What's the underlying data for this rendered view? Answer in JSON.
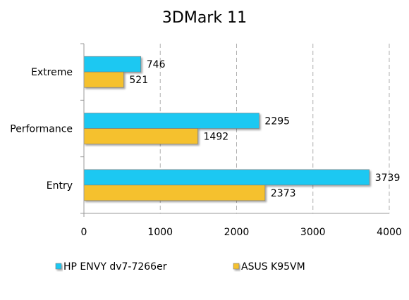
{
  "chart_data": {
    "type": "bar",
    "orientation": "horizontal",
    "title": "3DMark 11",
    "categories": [
      "Extreme",
      "Performance",
      "Entry"
    ],
    "series": [
      {
        "name": "HP ENVY dv7-7266er",
        "color": "#1ec8f2",
        "values": [
          746,
          2295,
          3739
        ]
      },
      {
        "name": "ASUS K95VM",
        "color": "#f5c12e",
        "values": [
          521,
          1492,
          2373
        ]
      }
    ],
    "xlim": [
      0,
      4000
    ],
    "xticks": [
      0,
      1000,
      2000,
      3000,
      4000
    ],
    "grid": true,
    "legend_position": "bottom"
  }
}
